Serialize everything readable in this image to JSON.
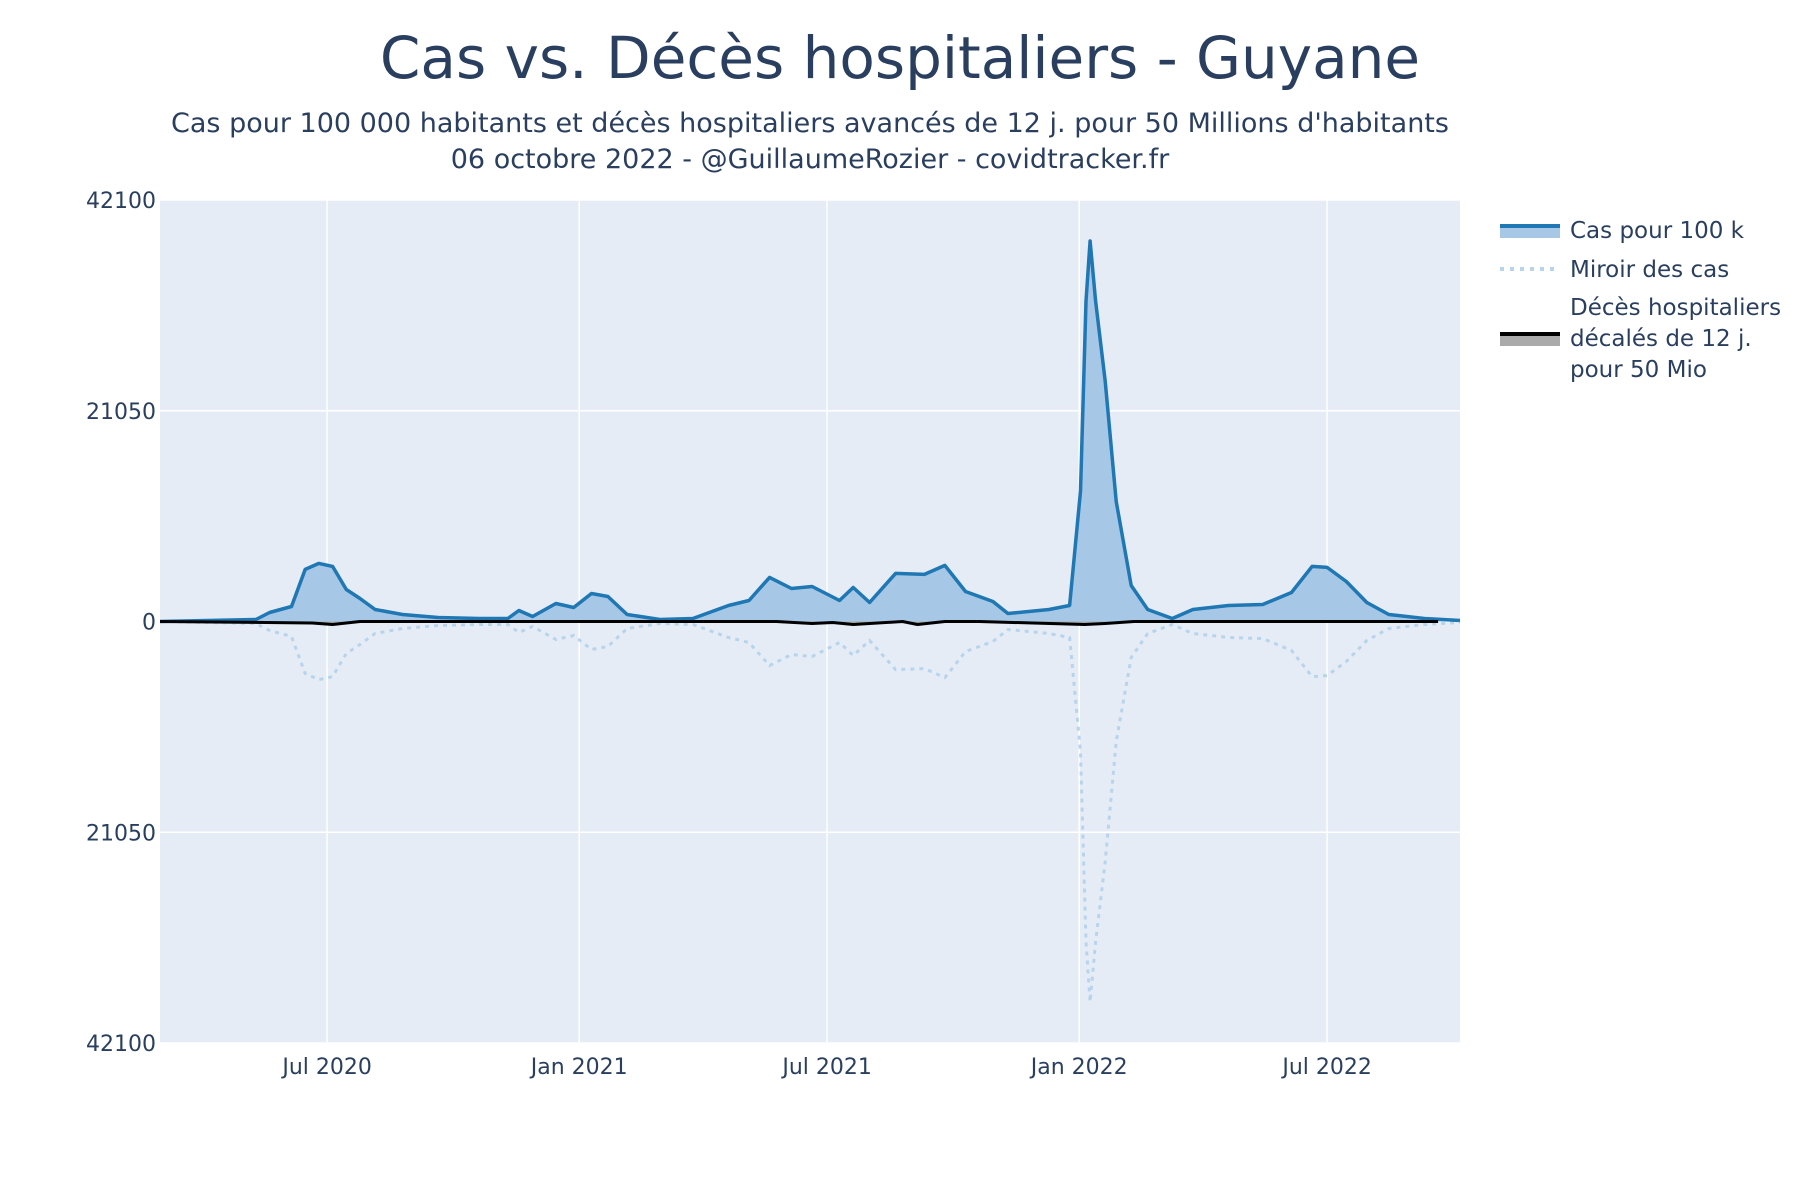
{
  "title": "Cas vs. Décès hospitaliers - Guyane",
  "subtitle_line1": "Cas pour 100 000 habitants et décès hospitaliers avancés de 12 j. pour 50 Millions d'habitants",
  "subtitle_line2": "06 octobre 2022 - @GuillaumeRozier - covidtracker.fr",
  "colors": {
    "plot_bg": "#e5ecf6",
    "cases_line": "#1f77b4",
    "cases_fill": "#a6c8e6",
    "mirror_line": "#b8d4ec",
    "deaths_line": "#000000",
    "deaths_fill": "#aaaaaa",
    "grid": "#ffffff"
  },
  "chart_data": {
    "type": "area",
    "ylim": [
      -42100,
      42100
    ],
    "yticks": [
      {
        "value": 42100,
        "label": "42100"
      },
      {
        "value": 21050,
        "label": "21050"
      },
      {
        "value": 0,
        "label": "0"
      },
      {
        "value": -21050,
        "label": "21050"
      },
      {
        "value": -42100,
        "label": "42100"
      }
    ],
    "xlim": [
      "2020-03-01",
      "2022-10-06"
    ],
    "xticks": [
      {
        "date": "2020-07-01",
        "label": "Jul 2020"
      },
      {
        "date": "2021-01-01",
        "label": "Jan 2021"
      },
      {
        "date": "2021-07-01",
        "label": "Jul 2021"
      },
      {
        "date": "2022-01-01",
        "label": "Jan 2022"
      },
      {
        "date": "2022-07-01",
        "label": "Jul 2022"
      }
    ],
    "grid": true,
    "legend_position": "right",
    "series": [
      {
        "name": "Cas pour 100 k",
        "style": "area",
        "points": [
          [
            "2020-03-01",
            0
          ],
          [
            "2020-05-10",
            200
          ],
          [
            "2020-05-20",
            900
          ],
          [
            "2020-06-05",
            1500
          ],
          [
            "2020-06-15",
            5200
          ],
          [
            "2020-06-25",
            5800
          ],
          [
            "2020-07-05",
            5500
          ],
          [
            "2020-07-15",
            3200
          ],
          [
            "2020-07-25",
            2300
          ],
          [
            "2020-08-05",
            1200
          ],
          [
            "2020-08-25",
            700
          ],
          [
            "2020-09-20",
            400
          ],
          [
            "2020-10-20",
            300
          ],
          [
            "2020-11-10",
            300
          ],
          [
            "2020-11-18",
            1100
          ],
          [
            "2020-11-28",
            500
          ],
          [
            "2020-12-15",
            1800
          ],
          [
            "2020-12-28",
            1400
          ],
          [
            "2021-01-10",
            2800
          ],
          [
            "2021-01-22",
            2500
          ],
          [
            "2021-02-05",
            700
          ],
          [
            "2021-03-01",
            200
          ],
          [
            "2021-03-25",
            300
          ],
          [
            "2021-04-20",
            1600
          ],
          [
            "2021-05-05",
            2100
          ],
          [
            "2021-05-20",
            4400
          ],
          [
            "2021-06-05",
            3300
          ],
          [
            "2021-06-20",
            3500
          ],
          [
            "2021-07-10",
            2100
          ],
          [
            "2021-07-20",
            3400
          ],
          [
            "2021-08-01",
            1900
          ],
          [
            "2021-08-20",
            4800
          ],
          [
            "2021-09-10",
            4700
          ],
          [
            "2021-09-25",
            5600
          ],
          [
            "2021-10-10",
            3000
          ],
          [
            "2021-10-30",
            2000
          ],
          [
            "2021-11-10",
            800
          ],
          [
            "2021-12-10",
            1200
          ],
          [
            "2021-12-25",
            1600
          ],
          [
            "2022-01-02",
            13000
          ],
          [
            "2022-01-06",
            32000
          ],
          [
            "2022-01-09",
            38000
          ],
          [
            "2022-01-13",
            32000
          ],
          [
            "2022-01-20",
            24000
          ],
          [
            "2022-01-28",
            12000
          ],
          [
            "2022-02-08",
            3600
          ],
          [
            "2022-02-20",
            1200
          ],
          [
            "2022-03-10",
            300
          ],
          [
            "2022-03-25",
            1200
          ],
          [
            "2022-04-20",
            1600
          ],
          [
            "2022-05-15",
            1700
          ],
          [
            "2022-06-05",
            2900
          ],
          [
            "2022-06-20",
            5500
          ],
          [
            "2022-07-01",
            5400
          ],
          [
            "2022-07-15",
            4000
          ],
          [
            "2022-07-30",
            1900
          ],
          [
            "2022-08-15",
            700
          ],
          [
            "2022-09-10",
            300
          ],
          [
            "2022-10-06",
            100
          ]
        ]
      },
      {
        "name": "Miroir des cas",
        "style": "dotted",
        "mirror_of": 0
      },
      {
        "name": "Décès hospitaliers décalés de 12 j. pour 50 Mio",
        "legend_lines": [
          "Décès hospitaliers",
          "décalés de 12 j.",
          "pour 50 Mio"
        ],
        "style": "area",
        "points": [
          [
            "2020-03-01",
            0
          ],
          [
            "2020-06-20",
            -150
          ],
          [
            "2020-07-05",
            -300
          ],
          [
            "2020-07-25",
            0
          ],
          [
            "2021-05-25",
            0
          ],
          [
            "2021-06-20",
            -200
          ],
          [
            "2021-07-05",
            -100
          ],
          [
            "2021-07-20",
            -300
          ],
          [
            "2021-08-25",
            0
          ],
          [
            "2021-09-05",
            -300
          ],
          [
            "2021-09-25",
            0
          ],
          [
            "2021-10-20",
            0
          ],
          [
            "2022-01-05",
            -300
          ],
          [
            "2022-01-20",
            -200
          ],
          [
            "2022-02-10",
            0
          ],
          [
            "2022-09-20",
            0
          ]
        ]
      }
    ]
  }
}
